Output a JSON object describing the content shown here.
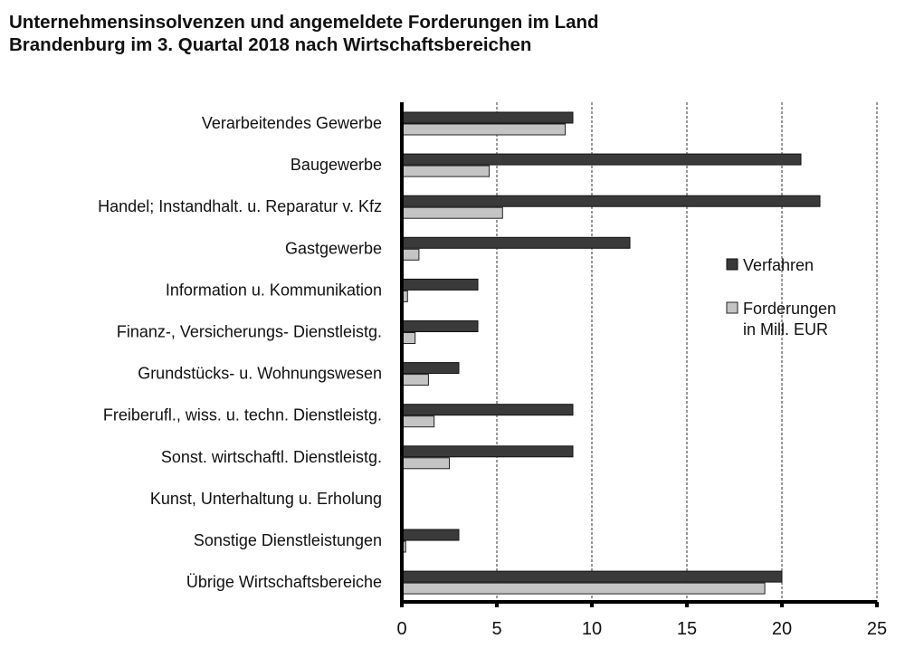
{
  "chart_data": {
    "type": "bar",
    "orientation": "horizontal",
    "title_lines": [
      "Unternehmensinsolvenzen und angemeldete Forderungen im Land",
      "Brandenburg im 3. Quartal 2018 nach Wirtschaftsbereichen"
    ],
    "categories": [
      "Verarbeitendes Gewerbe",
      "Baugewerbe",
      "Handel; Instandhalt. u. Reparatur v. Kfz",
      "Gastgewerbe",
      "Information u. Kommunikation",
      "Finanz-, Versicherungs- Dienstleistg.",
      "Grundstücks- u. Wohnungswesen",
      "Freiberufl., wiss. u. techn. Dienstleistg.",
      "Sonst. wirtschaftl. Dienstleistg.",
      "Kunst, Unterhaltung u. Erholung",
      "Sonstige Dienstleistungen",
      "Übrige Wirtschaftsbereiche"
    ],
    "series": [
      {
        "name": "Verfahren",
        "color": "#3a3a3a",
        "values": [
          9,
          21,
          22,
          12,
          4,
          4,
          3,
          9,
          9,
          0,
          3,
          20
        ]
      },
      {
        "name": "Forderungen in Mill. EUR",
        "legend_lines": [
          "Forderungen",
          "in Mill. EUR"
        ],
        "color": "#c4c4c4",
        "values": [
          8.6,
          4.6,
          5.3,
          0.9,
          0.3,
          0.7,
          1.4,
          1.7,
          2.5,
          0,
          0.2,
          19.1
        ]
      }
    ],
    "xlim": [
      0,
      25
    ],
    "xticks": [
      "0",
      "5",
      "10",
      "15",
      "20",
      "25"
    ],
    "xtick_values": [
      0,
      5,
      10,
      15,
      20,
      25
    ],
    "grid": "vertical dashed",
    "legend_position": "right"
  }
}
